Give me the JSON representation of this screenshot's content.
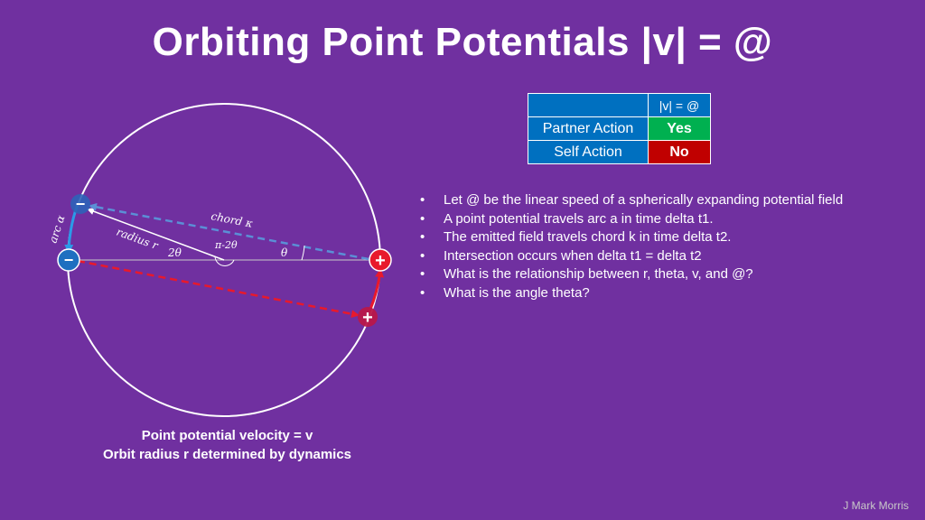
{
  "title": "Orbiting Point Potentials |v| = @",
  "diagram": {
    "labels": {
      "arc": "arc α",
      "radius": "radius r",
      "chord": "chord κ",
      "two_theta": "2θ",
      "pi_minus_two_theta": "π-2θ",
      "theta": "θ"
    },
    "potentials": {
      "negative_symbol": "−",
      "positive_symbol": "+"
    },
    "colors": {
      "negative": "#1f6fc0",
      "positive": "#e8192c",
      "chord": "#5b8fd6",
      "field_line": "#e8192c",
      "orbit": "#ffffff"
    }
  },
  "caption": {
    "line1": "Point potential velocity = v",
    "line2": "Orbit radius r determined by dynamics"
  },
  "table": {
    "column_header": "|v| = @",
    "rows": [
      {
        "label": "Partner Action",
        "value": "Yes"
      },
      {
        "label": "Self Action",
        "value": "No"
      }
    ]
  },
  "bullets": [
    "Let @ be the linear speed of a spherically expanding potential field",
    "A point potential travels arc a in time delta t1.",
    "The emitted field travels chord k in time delta t2.",
    "Intersection occurs when delta t1 = delta t2",
    "What is the relationship between r, theta, v, and @?",
    "What is the angle theta?"
  ],
  "author": "J Mark Morris"
}
